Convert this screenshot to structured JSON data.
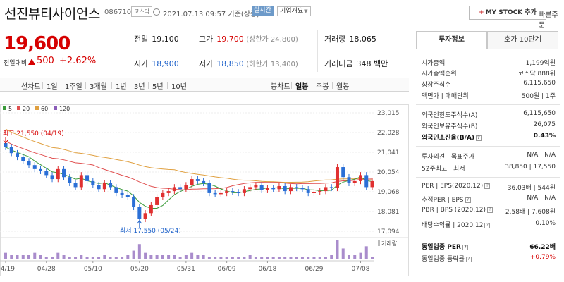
{
  "header": {
    "name": "선진뷰티사이언스",
    "code": "086710",
    "market": "코스닥",
    "datetime": "2021.07.13 09:57 기준(장중)",
    "realtime": "실시간",
    "company_btn": "기업개요",
    "mystock_plus": "+",
    "mystock": "MY STOCK 추가",
    "quick_order": "빠른주문"
  },
  "price": {
    "current": "19,600",
    "change_label": "전일대비",
    "change": "500",
    "change_pct": "+2.62%"
  },
  "summary": {
    "prev_label": "전일",
    "prev": "19,100",
    "high_label": "고가",
    "high": "19,700",
    "upper_limit": "(상한가 24,800)",
    "vol_label": "거래량",
    "vol": "18,065",
    "open_label": "시가",
    "open": "18,900",
    "low_label": "저가",
    "low": "18,850",
    "lower_limit": "(하한가 13,400)",
    "amount_label": "거래대금",
    "amount": "348 백만"
  },
  "tabs": {
    "line": [
      "선차트",
      "1일",
      "1주일",
      "3개월",
      "1년",
      "3년",
      "5년",
      "10년"
    ],
    "candle": [
      "봉차트",
      "일봉",
      "주봉",
      "월봉"
    ]
  },
  "chart_data": {
    "type": "candlestick",
    "legend": [
      {
        "name": "5",
        "color": "#3a9b3a"
      },
      {
        "name": "20",
        "color": "#e05050"
      },
      {
        "name": "60",
        "color": "#e0a040"
      },
      {
        "name": "120",
        "color": "#8a5cb8"
      }
    ],
    "y_ticks": [
      "23,015",
      "22,028",
      "21,041",
      "20,054",
      "19,068",
      "18,081",
      "17,094"
    ],
    "y_tick_values": [
      23015,
      22028,
      21041,
      20054,
      19068,
      18081,
      17094
    ],
    "x_ticks": [
      "04/19",
      "04/28",
      "05/10",
      "05/20",
      "05/31",
      "06/09",
      "06/18",
      "06/29",
      "07/08"
    ],
    "x_tick_index": [
      0,
      7,
      15,
      23,
      31,
      38,
      45,
      53,
      61
    ],
    "high_note": "최고 21,550 (04/19)",
    "low_note": "최저 17,550 (05/24)",
    "volume_label": "거래량",
    "closes": [
      21300,
      21000,
      20800,
      20600,
      20400,
      20200,
      20100,
      19900,
      19700,
      20200,
      19800,
      19500,
      19300,
      19900,
      19600,
      19400,
      19200,
      19500,
      19300,
      19000,
      18900,
      18800,
      18300,
      17700,
      18000,
      18400,
      18800,
      19000,
      19100,
      19300,
      19200,
      19400,
      19700,
      19600,
      19500,
      19000,
      18950,
      19000,
      19100,
      19050,
      19000,
      19200,
      19300,
      19400,
      19150,
      19250,
      19200,
      19350,
      19100,
      19300,
      19250,
      19200,
      19000,
      19050,
      19100,
      19300,
      19250,
      20300,
      19800,
      19500,
      19600,
      19900,
      19300,
      19600
    ],
    "volumes": [
      3,
      2,
      2,
      2,
      2,
      3,
      2,
      1,
      1,
      3,
      2,
      1,
      1,
      2,
      1,
      1,
      1,
      2,
      1,
      1,
      1,
      2,
      4,
      7,
      3,
      2,
      2,
      2,
      2,
      2,
      1,
      2,
      3,
      2,
      2,
      1,
      1,
      1,
      1,
      1,
      1,
      1,
      2,
      1,
      1,
      1,
      1,
      1,
      1,
      1,
      1,
      1,
      1,
      1,
      1,
      1,
      2,
      9,
      5,
      2,
      2,
      3,
      6,
      1
    ]
  },
  "sidebar": {
    "tab_invest": "투자정보",
    "tab_ask": "호가 10단계",
    "rows": [
      {
        "label": "시가총액",
        "value": "1,199억원"
      },
      {
        "label": "시가총액순위",
        "value": "코스닥 888위"
      },
      {
        "label": "상장주식수",
        "value": "6,115,650"
      },
      {
        "label": "액면가 | 매매단위",
        "value": "500원 | 1주"
      },
      {
        "label": "외국인한도주식수(A)",
        "value": "6,115,650"
      },
      {
        "label": "외국인보유주식수(B)",
        "value": "26,075"
      },
      {
        "label": "외국인소진율(B/A)",
        "value": "0.43%"
      },
      {
        "label": "투자의견 | 목표주가",
        "value": "N/A | N/A"
      },
      {
        "label": "52주최고 | 최저",
        "value": "38,850 | 17,550"
      },
      {
        "label": "PER | EPS(2020.12)",
        "value": "36.03배 | 544원"
      },
      {
        "label": "추정PER | EPS",
        "value": "N/A | N/A"
      },
      {
        "label": "PBR | BPS (2020.12)",
        "value": "2.58배 | 7,608원"
      },
      {
        "label": "배당수익률 | 2020.12",
        "value": "0.10%"
      },
      {
        "label": "동일업종 PER",
        "value": "66.22배"
      },
      {
        "label": "동일업종 등락률",
        "value": "+0.79%"
      }
    ],
    "q": "?"
  }
}
